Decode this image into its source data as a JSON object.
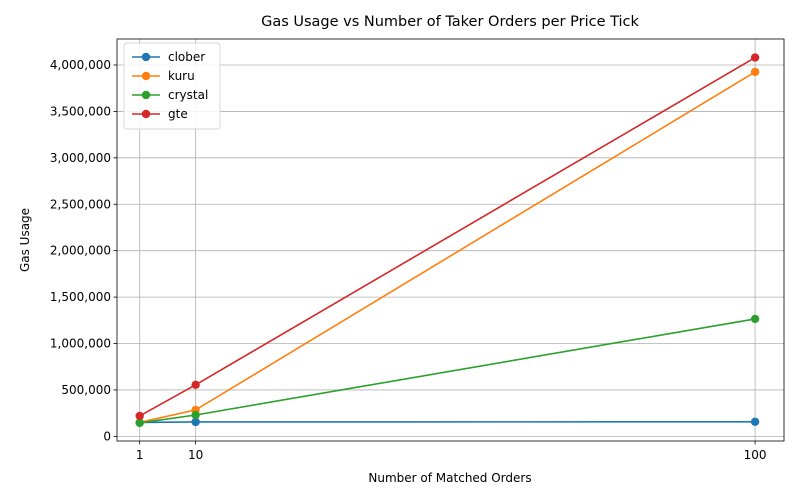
{
  "chart_data": {
    "type": "line",
    "title": "Gas Usage vs Number of Taker Orders per Price Tick",
    "xlabel": "Number of Matched Orders",
    "ylabel": "Gas Usage",
    "x": [
      1,
      10,
      100
    ],
    "x_ticks": [
      "1",
      "10",
      "100"
    ],
    "xlim": [
      -2.65,
      104.65
    ],
    "ylim": [
      -50000,
      4280000
    ],
    "y_ticks": [
      0,
      500000,
      1000000,
      1500000,
      2000000,
      2500000,
      3000000,
      3500000,
      4000000
    ],
    "y_tick_labels": [
      "0",
      "500,000",
      "1,000,000",
      "1,500,000",
      "2,000,000",
      "2,500,000",
      "3,000,000",
      "3,500,000",
      "4,000,000"
    ],
    "grid": true,
    "legend_position": "top-left",
    "series": [
      {
        "name": "clober",
        "color": "#1f77b4",
        "values": [
          150000,
          155000,
          157000
        ]
      },
      {
        "name": "kuru",
        "color": "#ff7f0e",
        "values": [
          150000,
          285000,
          3925000
        ]
      },
      {
        "name": "crystal",
        "color": "#2ca02c",
        "values": [
          145000,
          230000,
          1265000
        ]
      },
      {
        "name": "gte",
        "color": "#d62728",
        "values": [
          220000,
          555000,
          4080000
        ]
      }
    ]
  }
}
